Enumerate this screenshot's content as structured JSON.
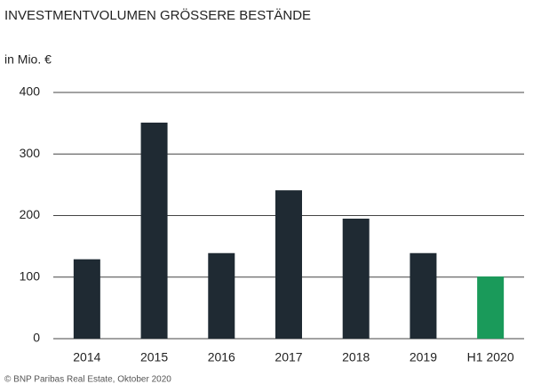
{
  "chart_data": {
    "type": "bar",
    "title": "INVESTMENTVOLUMEN GRÖSSERE BESTÄNDE",
    "y_label": "in Mio. €",
    "categories": [
      "2014",
      "2015",
      "2016",
      "2017",
      "2018",
      "2019",
      "H1 2020"
    ],
    "values": [
      129,
      351,
      139,
      241,
      195,
      139,
      101
    ],
    "colors": [
      "#1f2a33",
      "#1f2a33",
      "#1f2a33",
      "#1f2a33",
      "#1f2a33",
      "#1f2a33",
      "#1a9a5a"
    ],
    "ylim": [
      0,
      400
    ],
    "yticks": [
      0,
      100,
      200,
      300,
      400
    ],
    "grid": true,
    "source": "© BNP Paribas Real Estate, Oktober 2020"
  }
}
